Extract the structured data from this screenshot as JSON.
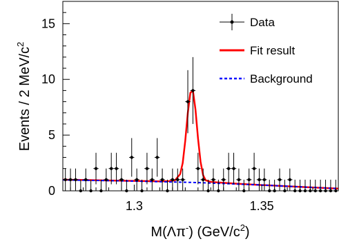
{
  "chart_data": {
    "type": "scatter",
    "xlabel": {
      "prefix": "M(",
      "greek": "Λπ",
      "sup": "-",
      "suffix": ") (GeV/c",
      "unit_sup": "2",
      "close": ")"
    },
    "ylabel": {
      "main": "Events / 2 MeV/c",
      "sup": "2"
    },
    "xlim": [
      1.272,
      1.38
    ],
    "ylim": [
      0,
      17
    ],
    "xticks": [
      1.3,
      1.35
    ],
    "xtick_labels": [
      "1.3",
      "1.35"
    ],
    "yticks": [
      0,
      5,
      10,
      15
    ],
    "ytick_labels": [
      "0",
      "5",
      "10",
      "15"
    ],
    "legend": {
      "placement": "top-right",
      "entries": [
        {
          "label": "Data",
          "style": "marker-errorbar",
          "color": "#000000"
        },
        {
          "label": "Fit result",
          "style": "solid-line",
          "color": "#ff0000"
        },
        {
          "label": "Background",
          "style": "dashed-line",
          "color": "#0000ff"
        }
      ]
    },
    "data_points": {
      "name": "Data",
      "x": [
        1.273,
        1.275,
        1.277,
        1.279,
        1.281,
        1.283,
        1.285,
        1.287,
        1.289,
        1.291,
        1.293,
        1.295,
        1.297,
        1.299,
        1.301,
        1.303,
        1.305,
        1.307,
        1.309,
        1.311,
        1.313,
        1.315,
        1.317,
        1.319,
        1.321,
        1.323,
        1.325,
        1.327,
        1.329,
        1.331,
        1.333,
        1.335,
        1.337,
        1.339,
        1.341,
        1.343,
        1.345,
        1.347,
        1.349,
        1.351,
        1.353,
        1.355,
        1.357,
        1.359,
        1.361,
        1.363,
        1.365,
        1.367,
        1.369,
        1.371,
        1.373,
        1.375,
        1.377,
        1.379
      ],
      "y": [
        1,
        1,
        1,
        0,
        1,
        0,
        2,
        0,
        1,
        2,
        2,
        1,
        0,
        3,
        1,
        0,
        2,
        1,
        3,
        1,
        0,
        1,
        1,
        1,
        8,
        9,
        2,
        1,
        0,
        1,
        0,
        1,
        2,
        2,
        1,
        0,
        1,
        2,
        1,
        1,
        0,
        0,
        1,
        0,
        1,
        0,
        0,
        0,
        0,
        0,
        0,
        0,
        0,
        0
      ]
    },
    "series": [
      {
        "name": "Fit result",
        "color": "#ff0000",
        "style": "solid",
        "x": [
          1.272,
          1.28,
          1.29,
          1.3,
          1.305,
          1.31,
          1.314,
          1.316,
          1.318,
          1.319,
          1.32,
          1.321,
          1.322,
          1.323,
          1.324,
          1.325,
          1.326,
          1.327,
          1.328,
          1.33,
          1.335,
          1.34,
          1.35,
          1.36,
          1.37,
          1.38
        ],
        "y": [
          1.0,
          0.97,
          0.93,
          0.89,
          0.87,
          0.85,
          0.87,
          0.95,
          1.5,
          2.5,
          4.5,
          7.0,
          8.8,
          9.0,
          7.3,
          4.7,
          2.6,
          1.4,
          0.95,
          0.8,
          0.72,
          0.64,
          0.52,
          0.41,
          0.3,
          0.2
        ]
      },
      {
        "name": "Background",
        "color": "#0000ff",
        "style": "dashed",
        "x": [
          1.272,
          1.3,
          1.325,
          1.35,
          1.38
        ],
        "y": [
          0.98,
          0.87,
          0.74,
          0.52,
          0.2
        ]
      }
    ]
  }
}
